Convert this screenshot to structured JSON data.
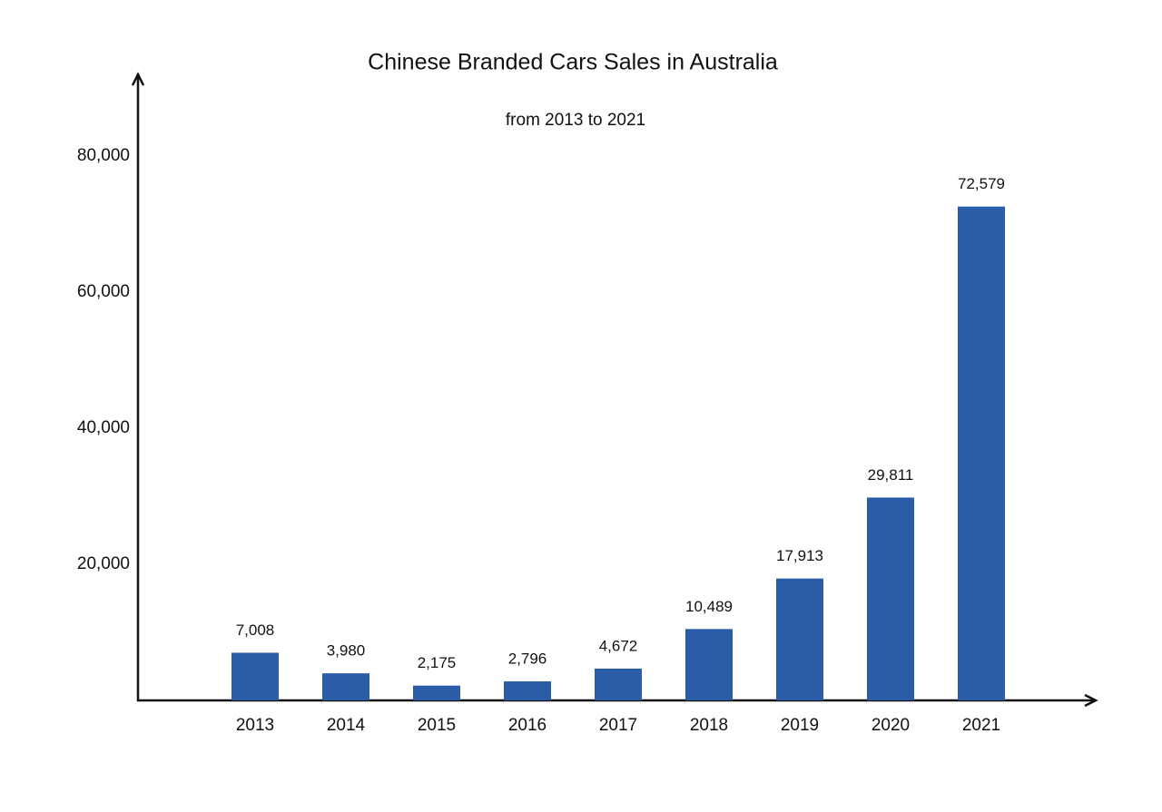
{
  "chart_data": {
    "type": "bar",
    "title": "Chinese Branded Cars Sales in Australia",
    "subtitle": "from 2013 to 2021",
    "categories": [
      "2013",
      "2014",
      "2015",
      "2016",
      "2017",
      "2018",
      "2019",
      "2020",
      "2021"
    ],
    "values": [
      7008,
      3980,
      2175,
      2796,
      4672,
      10489,
      17913,
      29811,
      72579
    ],
    "value_labels": [
      "7,008",
      "3,980",
      "2,175",
      "2,796",
      "4,672",
      "10,489",
      "17,913",
      "29,811",
      "72,579"
    ],
    "color": "#2b5ca8",
    "ylim": [
      0,
      92000
    ],
    "yticks": [
      {
        "value": 20000,
        "label": "20,000"
      },
      {
        "value": 40000,
        "label": "40,000"
      },
      {
        "value": 60000,
        "label": "60,000"
      },
      {
        "value": 80000,
        "label": "80,000"
      }
    ],
    "grid": false
  }
}
